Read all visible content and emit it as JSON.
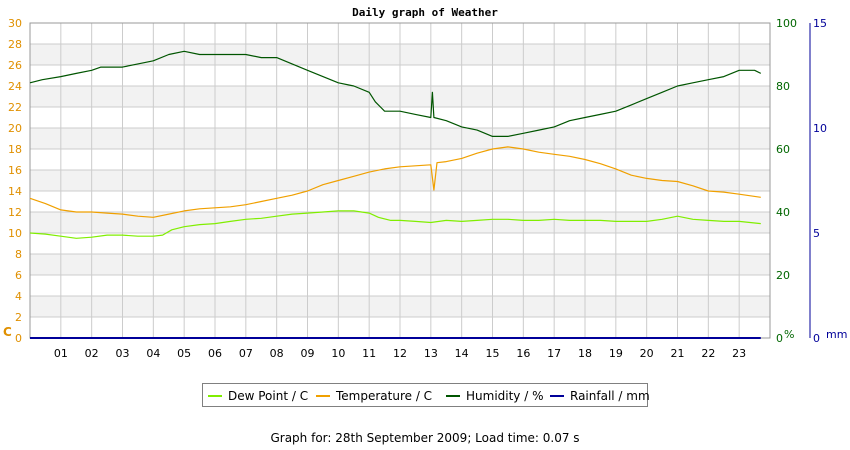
{
  "title": "Daily graph of Weather",
  "footer": {
    "label": "Graph for: 28th September 2009; Load time: 0.07 s"
  },
  "colors": {
    "dew_point": "#80ee00",
    "temperature": "#f0a000",
    "humidity": "#005500",
    "rainfall": "#000099",
    "left_axis": "#e09000",
    "humidity_axis": "#006600",
    "rain_axis": "#000099",
    "band": "#f2f2f2",
    "grid": "#cccccc"
  },
  "legend": [
    {
      "key": "dew_point",
      "label": "Dew Point / C"
    },
    {
      "key": "temperature",
      "label": "Temperature / C"
    },
    {
      "key": "humidity",
      "label": "Humidity / %"
    },
    {
      "key": "rainfall",
      "label": "Rainfall / mm"
    }
  ],
  "chart_data": {
    "type": "line",
    "title": "Daily graph of Weather",
    "x_ticks": [
      "01",
      "02",
      "03",
      "04",
      "05",
      "06",
      "07",
      "08",
      "09",
      "10",
      "11",
      "12",
      "13",
      "14",
      "15",
      "16",
      "17",
      "18",
      "19",
      "20",
      "21",
      "22",
      "23"
    ],
    "x_range": [
      0,
      24
    ],
    "grid": true,
    "legend_position": "bottom",
    "axes": {
      "left": {
        "unit_label": "C",
        "ticks": [
          0,
          2,
          4,
          6,
          8,
          10,
          12,
          14,
          16,
          18,
          20,
          22,
          24,
          26,
          28,
          30
        ],
        "range": [
          0,
          30
        ]
      },
      "right_humidity": {
        "unit_label": "%",
        "ticks": [
          0,
          20,
          40,
          60,
          80,
          100
        ],
        "range": [
          0,
          100
        ]
      },
      "right_rain": {
        "unit_label": "mm",
        "ticks": [
          0,
          5,
          10,
          15
        ],
        "range": [
          0,
          15
        ]
      }
    },
    "series": [
      {
        "key": "dew_point",
        "name": "Dew Point / C",
        "axis": "left",
        "points": [
          [
            0,
            10.0
          ],
          [
            0.5,
            9.9
          ],
          [
            1,
            9.7
          ],
          [
            1.5,
            9.5
          ],
          [
            2,
            9.6
          ],
          [
            2.5,
            9.8
          ],
          [
            3,
            9.8
          ],
          [
            3.5,
            9.7
          ],
          [
            4,
            9.7
          ],
          [
            4.3,
            9.8
          ],
          [
            4.6,
            10.3
          ],
          [
            5,
            10.6
          ],
          [
            5.5,
            10.8
          ],
          [
            6,
            10.9
          ],
          [
            6.5,
            11.1
          ],
          [
            7,
            11.3
          ],
          [
            7.5,
            11.4
          ],
          [
            8,
            11.6
          ],
          [
            8.5,
            11.8
          ],
          [
            9,
            11.9
          ],
          [
            9.5,
            12.0
          ],
          [
            10,
            12.1
          ],
          [
            10.5,
            12.1
          ],
          [
            11,
            11.9
          ],
          [
            11.3,
            11.5
          ],
          [
            11.7,
            11.2
          ],
          [
            12,
            11.2
          ],
          [
            12.5,
            11.1
          ],
          [
            13,
            11.0
          ],
          [
            13.5,
            11.2
          ],
          [
            14,
            11.1
          ],
          [
            14.5,
            11.2
          ],
          [
            15,
            11.3
          ],
          [
            15.5,
            11.3
          ],
          [
            16,
            11.2
          ],
          [
            16.5,
            11.2
          ],
          [
            17,
            11.3
          ],
          [
            17.5,
            11.2
          ],
          [
            18,
            11.2
          ],
          [
            18.5,
            11.2
          ],
          [
            19,
            11.1
          ],
          [
            19.5,
            11.1
          ],
          [
            20,
            11.1
          ],
          [
            20.5,
            11.3
          ],
          [
            21,
            11.6
          ],
          [
            21.5,
            11.3
          ],
          [
            22,
            11.2
          ],
          [
            22.5,
            11.1
          ],
          [
            23,
            11.1
          ],
          [
            23.7,
            10.9
          ]
        ]
      },
      {
        "key": "temperature",
        "name": "Temperature / C",
        "axis": "left",
        "points": [
          [
            0,
            13.3
          ],
          [
            0.5,
            12.8
          ],
          [
            1,
            12.2
          ],
          [
            1.5,
            12.0
          ],
          [
            2,
            12.0
          ],
          [
            2.5,
            11.9
          ],
          [
            3,
            11.8
          ],
          [
            3.5,
            11.6
          ],
          [
            4,
            11.5
          ],
          [
            4.5,
            11.8
          ],
          [
            5,
            12.1
          ],
          [
            5.5,
            12.3
          ],
          [
            6,
            12.4
          ],
          [
            6.5,
            12.5
          ],
          [
            7,
            12.7
          ],
          [
            7.5,
            13.0
          ],
          [
            8,
            13.3
          ],
          [
            8.5,
            13.6
          ],
          [
            9,
            14.0
          ],
          [
            9.5,
            14.6
          ],
          [
            10,
            15.0
          ],
          [
            10.5,
            15.4
          ],
          [
            11,
            15.8
          ],
          [
            11.5,
            16.1
          ],
          [
            12,
            16.3
          ],
          [
            12.5,
            16.4
          ],
          [
            13,
            16.5
          ],
          [
            13.1,
            14.1
          ],
          [
            13.2,
            16.7
          ],
          [
            13.5,
            16.8
          ],
          [
            14,
            17.1
          ],
          [
            14.5,
            17.6
          ],
          [
            15,
            18.0
          ],
          [
            15.5,
            18.2
          ],
          [
            16,
            18.0
          ],
          [
            16.5,
            17.7
          ],
          [
            17,
            17.5
          ],
          [
            17.5,
            17.3
          ],
          [
            18,
            17.0
          ],
          [
            18.5,
            16.6
          ],
          [
            19,
            16.1
          ],
          [
            19.5,
            15.5
          ],
          [
            20,
            15.2
          ],
          [
            20.5,
            15.0
          ],
          [
            21,
            14.9
          ],
          [
            21.5,
            14.5
          ],
          [
            22,
            14.0
          ],
          [
            22.5,
            13.9
          ],
          [
            23,
            13.7
          ],
          [
            23.7,
            13.4
          ]
        ]
      },
      {
        "key": "humidity",
        "name": "Humidity / %",
        "axis": "right_humidity",
        "points": [
          [
            0,
            81
          ],
          [
            0.4,
            82
          ],
          [
            1,
            83
          ],
          [
            1.5,
            84
          ],
          [
            2,
            85
          ],
          [
            2.3,
            86
          ],
          [
            3,
            86
          ],
          [
            3.5,
            87
          ],
          [
            4,
            88
          ],
          [
            4.5,
            90
          ],
          [
            5,
            91
          ],
          [
            5.5,
            90
          ],
          [
            6,
            90
          ],
          [
            6.5,
            90
          ],
          [
            7,
            90
          ],
          [
            7.5,
            89
          ],
          [
            8,
            89
          ],
          [
            8.5,
            87
          ],
          [
            9,
            85
          ],
          [
            9.5,
            83
          ],
          [
            10,
            81
          ],
          [
            10.5,
            80
          ],
          [
            11,
            78
          ],
          [
            11.2,
            75
          ],
          [
            11.5,
            72
          ],
          [
            12,
            72
          ],
          [
            12.5,
            71
          ],
          [
            13,
            70
          ],
          [
            13.05,
            78
          ],
          [
            13.1,
            70
          ],
          [
            13.5,
            69
          ],
          [
            14,
            67
          ],
          [
            14.5,
            66
          ],
          [
            15,
            64
          ],
          [
            15.5,
            64
          ],
          [
            16,
            65
          ],
          [
            16.5,
            66
          ],
          [
            17,
            67
          ],
          [
            17.5,
            69
          ],
          [
            18,
            70
          ],
          [
            18.5,
            71
          ],
          [
            19,
            72
          ],
          [
            19.5,
            74
          ],
          [
            20,
            76
          ],
          [
            20.5,
            78
          ],
          [
            21,
            80
          ],
          [
            21.5,
            81
          ],
          [
            22,
            82
          ],
          [
            22.5,
            83
          ],
          [
            23,
            85
          ],
          [
            23.5,
            85
          ],
          [
            23.7,
            84
          ]
        ]
      },
      {
        "key": "rainfall",
        "name": "Rainfall / mm",
        "axis": "right_rain",
        "points": [
          [
            0,
            0
          ],
          [
            23.7,
            0
          ]
        ]
      }
    ]
  }
}
